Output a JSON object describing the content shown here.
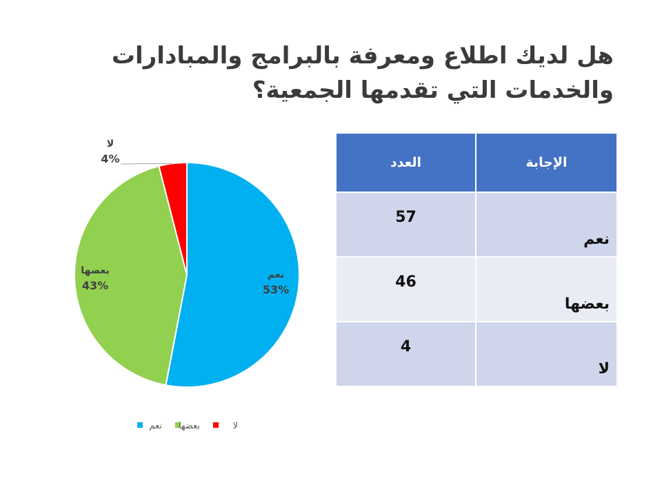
{
  "slide": {
    "title": "هل لديك اطلاع ومعرفة بالبرامج والمبادارات والخدمات التي تقدمها الجمعية؟"
  },
  "chart_data": {
    "type": "pie",
    "categories": [
      "نعم",
      "بعضها",
      "لا"
    ],
    "values": [
      53,
      43,
      4
    ],
    "labels": [
      "نعم",
      "بعضها",
      "لا"
    ],
    "percent_labels": [
      "53%",
      "43%",
      "4%"
    ],
    "colors": [
      "#00b0f0",
      "#92d050",
      "#ff0000"
    ],
    "start_angle_deg": 0,
    "direction": "clockwise",
    "legend": {
      "position": "bottom",
      "entries": [
        "نعم",
        "بعضها",
        "لا"
      ]
    }
  },
  "table": {
    "headers": {
      "answer": "الإجابة",
      "count": "العدد"
    },
    "rows": [
      {
        "answer": "نعم",
        "count": "57"
      },
      {
        "answer": "بعضها",
        "count": "46"
      },
      {
        "answer": "لا",
        "count": "4"
      }
    ]
  }
}
